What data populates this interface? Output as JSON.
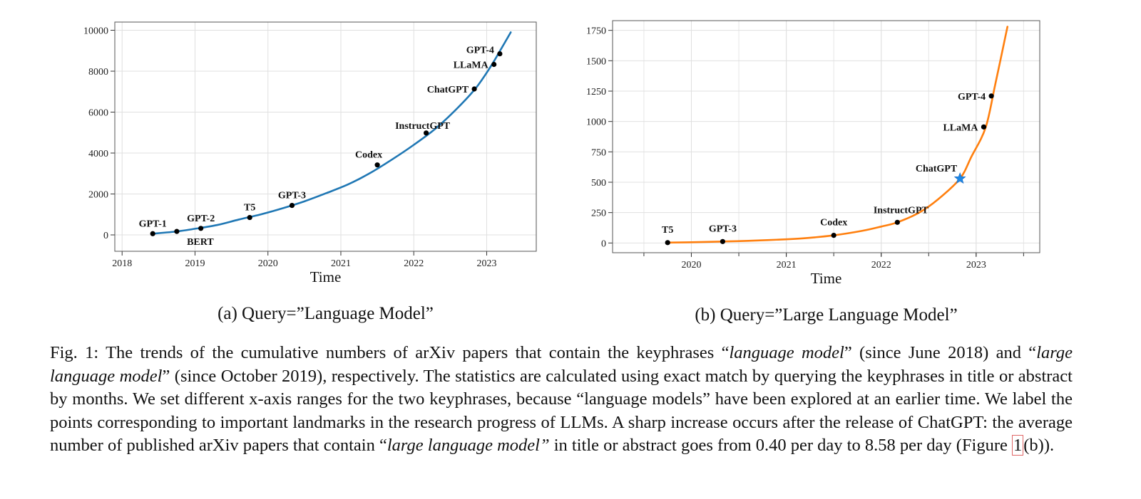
{
  "chart_data": [
    {
      "type": "line",
      "subcaption": "(a) Query=”Language Model”",
      "xlabel": "Time",
      "ylabel": "",
      "xlim": [
        2017.9,
        2023.68
      ],
      "ylim": [
        -800,
        10400
      ],
      "xticks": [
        "2018",
        "2019",
        "2020",
        "2021",
        "2022",
        "2023"
      ],
      "yticks": [
        "0",
        "2000",
        "4000",
        "6000",
        "8000",
        "10000"
      ],
      "grid": true,
      "color": "#1f77b4",
      "x": [
        2018.42,
        2018.75,
        2019.0,
        2019.3,
        2019.6,
        2019.9,
        2020.2,
        2020.5,
        2020.8,
        2021.1,
        2021.4,
        2021.7,
        2022.0,
        2022.3,
        2022.6,
        2022.85,
        2023.05,
        2023.2,
        2023.33
      ],
      "y": [
        60,
        170,
        300,
        480,
        750,
        1000,
        1300,
        1640,
        2040,
        2470,
        3020,
        3680,
        4400,
        5200,
        6200,
        7170,
        8200,
        9100,
        9900
      ],
      "landmarks": [
        {
          "label": "GPT-1",
          "x": 2018.42,
          "y": 60
        },
        {
          "label": "BERT",
          "x": 2018.75,
          "y": 170
        },
        {
          "label": "GPT-2",
          "x": 2019.08,
          "y": 320
        },
        {
          "label": "T5",
          "x": 2019.75,
          "y": 850
        },
        {
          "label": "GPT-3",
          "x": 2020.33,
          "y": 1440
        },
        {
          "label": "Codex",
          "x": 2021.5,
          "y": 3420
        },
        {
          "label": "InstructGPT",
          "x": 2022.17,
          "y": 4980
        },
        {
          "label": "ChatGPT",
          "x": 2022.83,
          "y": 7130
        },
        {
          "label": "LLaMA",
          "x": 2023.1,
          "y": 8330
        },
        {
          "label": "GPT-4",
          "x": 2023.18,
          "y": 8850
        }
      ]
    },
    {
      "type": "line",
      "subcaption": "(b) Query=”Large Language Model”",
      "xlabel": "Time",
      "ylabel": "",
      "xlim": [
        2019.17,
        2023.67
      ],
      "ylim": [
        -80,
        1830
      ],
      "xticks": [
        "2020",
        "2021",
        "2022",
        "2023"
      ],
      "yticks": [
        "0",
        "250",
        "500",
        "750",
        "1000",
        "1250",
        "1500",
        "1750"
      ],
      "grid": true,
      "color": "#ff7f0e",
      "x": [
        2019.75,
        2020.0,
        2020.33,
        2020.6,
        2020.9,
        2021.2,
        2021.5,
        2021.8,
        2022.0,
        2022.17,
        2022.4,
        2022.6,
        2022.83,
        2022.95,
        2023.1,
        2023.2,
        2023.33
      ],
      "y": [
        3,
        6,
        12,
        18,
        27,
        40,
        63,
        100,
        135,
        170,
        250,
        360,
        530,
        710,
        950,
        1300,
        1780
      ],
      "landmarks": [
        {
          "label": "T5",
          "x": 2019.75,
          "y": 3,
          "marker": "dot"
        },
        {
          "label": "GPT-3",
          "x": 2020.33,
          "y": 12,
          "marker": "dot"
        },
        {
          "label": "Codex",
          "x": 2021.5,
          "y": 63,
          "marker": "dot"
        },
        {
          "label": "InstructGPT",
          "x": 2022.17,
          "y": 170,
          "marker": "dot"
        },
        {
          "label": "ChatGPT",
          "x": 2022.83,
          "y": 530,
          "marker": "star"
        },
        {
          "label": "LLaMA",
          "x": 2023.08,
          "y": 955,
          "marker": "dot"
        },
        {
          "label": "GPT-4",
          "x": 2023.16,
          "y": 1210,
          "marker": "dot"
        }
      ]
    }
  ],
  "caption": {
    "p1": "Fig. 1: The trends of the cumulative numbers of arXiv papers that contain the keyphrases “",
    "em1": "language model",
    "p2": "” (since June 2018) and “",
    "em2": "large language model",
    "p3": "” (since October 2019), respectively. The statistics are calculated using exact match by querying the keyphrases in title or abstract by months. We set different x-axis ranges for the two keyphrases, because “language models” have been explored at an earlier time. We label the points corresponding to important landmarks in the research progress of LLMs. A sharp increase occurs after the release of ChatGPT: the average number of published arXiv papers that contain “",
    "em3": "large language model”",
    "p4": " in title or abstract goes from 0.40 per day to 8.58 per day (Figure ",
    "ref": "1",
    "p5": "(b))."
  }
}
